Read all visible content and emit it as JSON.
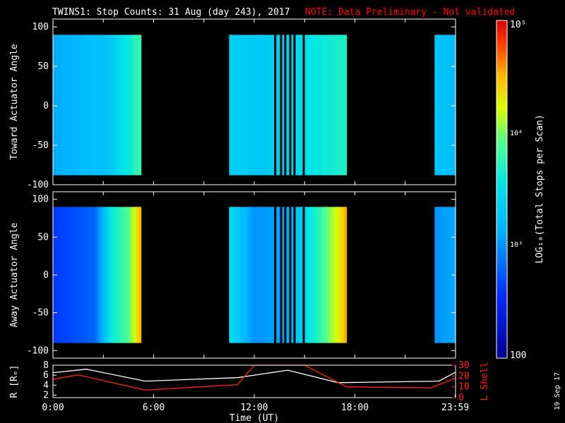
{
  "title": {
    "main": "TWINS1: Stop Counts: 31 Aug (day 243), 2017",
    "note": "NOTE: Data Preliminary - Not validated",
    "note_color": "#ff0000"
  },
  "stamp": "19 Sep 17",
  "colorbar": {
    "label": "LOG₁₀(Total Stops per Scan)",
    "ticks": [
      "10⁵",
      "10⁴",
      "10³",
      "100"
    ],
    "range": [
      100,
      100000
    ],
    "scale": "log"
  },
  "chart_data": [
    {
      "type": "heatmap",
      "ylabel": "Toward Actuator Angle",
      "ylim": [
        -100,
        110
      ],
      "yticks": [
        "100",
        "50",
        "0",
        "-50",
        "-100"
      ],
      "xlim": [
        0,
        24
      ],
      "data_intervals_hours": [
        [
          0.0,
          5.25
        ],
        [
          10.5,
          17.5
        ],
        [
          22.75,
          24.0
        ]
      ],
      "gap_lines_hours": [
        13.25,
        13.6,
        13.85,
        14.15,
        14.4,
        14.95
      ],
      "levels": [
        [
          0.0,
          3.1
        ],
        [
          3.5,
          3.3
        ],
        [
          4.0,
          3.5
        ],
        [
          4.6,
          3.6
        ],
        [
          5.0,
          3.8
        ],
        [
          10.5,
          3.4
        ],
        [
          12.0,
          3.3
        ],
        [
          14.0,
          3.4
        ],
        [
          16.0,
          3.6
        ],
        [
          17.5,
          3.7
        ],
        [
          22.75,
          3.3
        ],
        [
          24.0,
          3.2
        ]
      ]
    },
    {
      "type": "heatmap",
      "ylabel": "Away Actuator Angle",
      "ylim": [
        -110,
        110
      ],
      "yticks": [
        "100",
        "50",
        "0",
        "-50",
        "-100"
      ],
      "xlim": [
        0,
        24
      ],
      "data_intervals_hours": [
        [
          0.0,
          5.25
        ],
        [
          10.5,
          17.5
        ],
        [
          22.75,
          24.0
        ]
      ],
      "gap_lines_hours": [
        13.25,
        13.6,
        13.85,
        14.15,
        14.4,
        14.95
      ],
      "levels": [
        [
          0.0,
          2.6
        ],
        [
          2.5,
          2.8
        ],
        [
          3.5,
          3.6
        ],
        [
          4.5,
          3.9
        ],
        [
          5.2,
          4.5
        ],
        [
          10.5,
          3.5
        ],
        [
          12.0,
          3.0
        ],
        [
          14.0,
          3.1
        ],
        [
          16.0,
          3.8
        ],
        [
          17.3,
          4.4
        ],
        [
          17.5,
          4.6
        ],
        [
          22.75,
          3.0
        ],
        [
          24.0,
          3.1
        ]
      ]
    },
    {
      "type": "line",
      "xlabel": "Time (UT)",
      "ylabel": "R [Rₑ]",
      "ylabel_right": "L Shell",
      "xticks": [
        "0:00",
        "6:00",
        "12:00",
        "18:00",
        "23:59"
      ],
      "yticks_left": [
        "8",
        "6",
        "4",
        "2"
      ],
      "yticks_right": [
        "30",
        "20",
        "10",
        "0"
      ],
      "ylim_left": [
        1.5,
        8
      ],
      "ylim_right": [
        0,
        30
      ],
      "series": [
        {
          "color": "#ffffff",
          "x": [
            0,
            2,
            5.5,
            11,
            14,
            17,
            23,
            24
          ],
          "y": [
            6.5,
            7.2,
            4.8,
            5.5,
            7.0,
            4.5,
            4.8,
            6.6
          ]
        },
        {
          "color": "#ff2020",
          "x": [
            0,
            1.5,
            5.5,
            11,
            12,
            15,
            17.5,
            22.5,
            24
          ],
          "y": [
            17,
            21,
            7,
            12,
            30,
            30,
            10,
            9,
            18
          ]
        }
      ]
    }
  ]
}
